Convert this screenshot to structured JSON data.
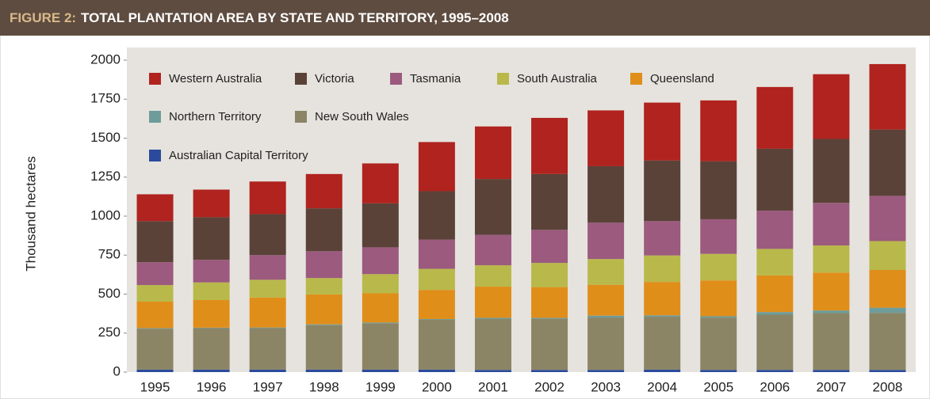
{
  "chart_data": {
    "type": "stacked_bar",
    "figure_label": "FIGURE 2:",
    "title": "TOTAL PLANTATION AREA BY STATE AND TERRITORY, 1995–2008",
    "y_label": "Thousand hectares",
    "categories": [
      "1995",
      "1996",
      "1997",
      "1998",
      "1999",
      "2000",
      "2001",
      "2002",
      "2003",
      "2004",
      "2005",
      "2006",
      "2007",
      "2008"
    ],
    "series": [
      {
        "name": "Western Australia",
        "color": "#b0231f",
        "values": [
          172,
          177,
          209,
          220,
          256,
          315,
          337,
          360,
          358,
          371,
          390,
          396,
          415,
          420
        ]
      },
      {
        "name": "Victoria",
        "color": "#5a4238",
        "values": [
          263,
          273,
          263,
          275,
          282,
          310,
          358,
          358,
          362,
          389,
          372,
          397,
          410,
          425
        ]
      },
      {
        "name": "Tasmania",
        "color": "#9b5a7e",
        "values": [
          147,
          145,
          158,
          172,
          172,
          188,
          195,
          212,
          233,
          220,
          222,
          245,
          273,
          290
        ]
      },
      {
        "name": "South Australia",
        "color": "#b8b94a",
        "values": [
          106,
          113,
          114,
          105,
          123,
          135,
          137,
          155,
          165,
          170,
          170,
          170,
          174,
          185
        ]
      },
      {
        "name": "Queensland",
        "color": "#e08e1a",
        "values": [
          170,
          177,
          192,
          192,
          187,
          187,
          200,
          197,
          198,
          214,
          230,
          235,
          243,
          242
        ]
      },
      {
        "name": "Northern Territory",
        "color": "#6d9c9b",
        "values": [
          4,
          3,
          4,
          6,
          5,
          5,
          8,
          6,
          12,
          9,
          10,
          17,
          17,
          33
        ]
      },
      {
        "name": "New South Wales",
        "color": "#8b8566",
        "values": [
          262,
          266,
          266,
          284,
          297,
          319,
          326,
          328,
          336,
          339,
          334,
          354,
          364,
          366
        ]
      },
      {
        "name": "Australian Capital Territory",
        "color": "#2b4a9c",
        "values": [
          16,
          16,
          16,
          16,
          16,
          16,
          14,
          14,
          14,
          16,
          14,
          14,
          14,
          14
        ]
      }
    ],
    "ylim": [
      0,
      2000
    ],
    "yticks": [
      0,
      250,
      500,
      750,
      1000,
      1250,
      1500,
      1750,
      2000
    ],
    "grid": false
  }
}
